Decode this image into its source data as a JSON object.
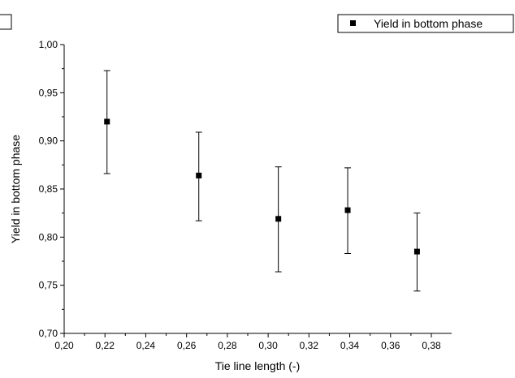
{
  "chart_data": {
    "type": "scatter",
    "xlabel": "Tie line length (-)",
    "ylabel": "Yield in bottom phase",
    "xlim": [
      0.2,
      0.39
    ],
    "ylim": [
      0.7,
      1.0
    ],
    "x_ticks": [
      "0,20",
      "0,22",
      "0,24",
      "0,26",
      "0,28",
      "0,30",
      "0,32",
      "0,34",
      "0,36",
      "0,38"
    ],
    "y_ticks": [
      "0,70",
      "0,75",
      "0,80",
      "0,85",
      "0,90",
      "0,95",
      "1,00"
    ],
    "legend_position": "top-right",
    "series": [
      {
        "name": "Yield in bottom phase",
        "x": [
          0.221,
          0.266,
          0.305,
          0.339,
          0.373
        ],
        "y": [
          0.92,
          0.864,
          0.819,
          0.828,
          0.785
        ],
        "error_low": [
          0.866,
          0.817,
          0.764,
          0.783,
          0.744
        ],
        "error_high": [
          0.973,
          0.909,
          0.873,
          0.872,
          0.825
        ]
      }
    ]
  }
}
